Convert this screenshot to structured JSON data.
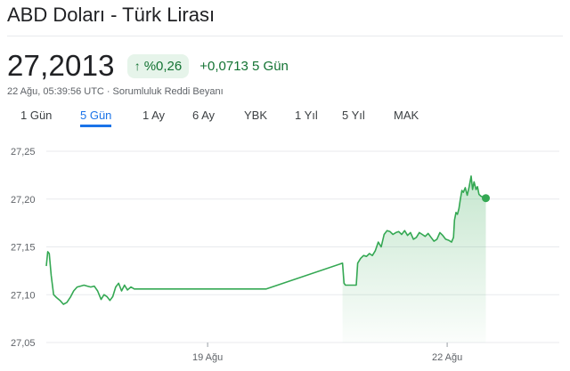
{
  "header": {
    "title": "ABD Doları - Türk Lirası",
    "price": "27,2013",
    "badge": {
      "arrow_icon": "arrow-up-icon",
      "arrow_glyph": "↑",
      "text": "%0,26"
    },
    "change": "+0,0713 5 Gün",
    "timestamp": "22 Ağu, 05:39:56 UTC",
    "separator": "·",
    "disclaimer": "Sorumluluk Reddi Beyanı"
  },
  "tabs": [
    {
      "label": "1 Gün",
      "active": false
    },
    {
      "label": "5 Gün",
      "active": true
    },
    {
      "label": "1 Ay",
      "active": false
    },
    {
      "label": "6 Ay",
      "active": false
    },
    {
      "label": "YBK",
      "active": false
    },
    {
      "label": "1 Yıl",
      "active": false
    },
    {
      "label": "5 Yıl",
      "active": false
    },
    {
      "label": "MAK",
      "active": false
    }
  ],
  "colors": {
    "line": "#34a853",
    "up": "#137333",
    "accent": "#1a73e8",
    "grid": "#e8eaed"
  },
  "chart_data": {
    "type": "line",
    "y_ticks": [
      "27,25",
      "27,20",
      "27,15",
      "27,10",
      "27,05"
    ],
    "x_ticks": [
      "19 Ağu",
      "22 Ağu"
    ],
    "ylim": [
      27.05,
      27.25
    ],
    "grid": true,
    "series": [
      {
        "values": [
          [
            0.0,
            27.13
          ],
          [
            0.3,
            27.145
          ],
          [
            0.6,
            27.143
          ],
          [
            1.0,
            27.12
          ],
          [
            1.5,
            27.1
          ],
          [
            2.1,
            27.097
          ],
          [
            2.8,
            27.094
          ],
          [
            3.5,
            27.09
          ],
          [
            4.2,
            27.092
          ],
          [
            5.0,
            27.098
          ],
          [
            5.6,
            27.104
          ],
          [
            6.3,
            27.108
          ],
          [
            7.0,
            27.109
          ],
          [
            7.7,
            27.11
          ],
          [
            8.4,
            27.109
          ],
          [
            9.1,
            27.108
          ],
          [
            9.8,
            27.109
          ],
          [
            10.5,
            27.104
          ],
          [
            11.2,
            27.095
          ],
          [
            11.8,
            27.1
          ],
          [
            12.4,
            27.098
          ],
          [
            13.0,
            27.094
          ],
          [
            13.6,
            27.098
          ],
          [
            14.2,
            27.108
          ],
          [
            14.8,
            27.112
          ],
          [
            15.4,
            27.104
          ],
          [
            16.0,
            27.11
          ],
          [
            16.6,
            27.105
          ],
          [
            17.3,
            27.108
          ],
          [
            18.0,
            27.106
          ],
          [
            18.8,
            27.106
          ],
          [
            22.0,
            27.106
          ],
          [
            35.0,
            27.106
          ],
          [
            45.0,
            27.106
          ],
          [
            60.6,
            27.133
          ],
          [
            60.9,
            27.112
          ],
          [
            61.2,
            27.11
          ],
          [
            63.4,
            27.11
          ],
          [
            63.7,
            27.133
          ],
          [
            64.3,
            27.138
          ],
          [
            64.9,
            27.141
          ],
          [
            65.5,
            27.14
          ],
          [
            66.1,
            27.143
          ],
          [
            66.7,
            27.141
          ],
          [
            67.3,
            27.146
          ],
          [
            67.9,
            27.155
          ],
          [
            68.5,
            27.15
          ],
          [
            69.1,
            27.163
          ],
          [
            69.7,
            27.167
          ],
          [
            70.3,
            27.166
          ],
          [
            70.9,
            27.163
          ],
          [
            71.5,
            27.165
          ],
          [
            72.1,
            27.166
          ],
          [
            72.7,
            27.163
          ],
          [
            73.3,
            27.167
          ],
          [
            73.9,
            27.162
          ],
          [
            74.5,
            27.165
          ],
          [
            75.1,
            27.158
          ],
          [
            75.7,
            27.16
          ],
          [
            76.3,
            27.165
          ],
          [
            76.9,
            27.163
          ],
          [
            77.5,
            27.161
          ],
          [
            78.1,
            27.164
          ],
          [
            78.7,
            27.16
          ],
          [
            79.3,
            27.156
          ],
          [
            79.9,
            27.158
          ],
          [
            80.5,
            27.165
          ],
          [
            81.1,
            27.162
          ],
          [
            81.7,
            27.158
          ],
          [
            82.3,
            27.157
          ],
          [
            82.9,
            27.155
          ],
          [
            83.3,
            27.16
          ],
          [
            83.5,
            27.178
          ],
          [
            83.8,
            27.186
          ],
          [
            84.1,
            27.184
          ],
          [
            84.4,
            27.19
          ],
          [
            84.7,
            27.2
          ],
          [
            85.0,
            27.209
          ],
          [
            85.3,
            27.207
          ],
          [
            85.7,
            27.212
          ],
          [
            86.1,
            27.204
          ],
          [
            86.5,
            27.213
          ],
          [
            86.9,
            27.224
          ],
          [
            87.2,
            27.21
          ],
          [
            87.5,
            27.218
          ],
          [
            87.9,
            27.21
          ],
          [
            88.2,
            27.213
          ],
          [
            88.5,
            27.205
          ],
          [
            88.9,
            27.203
          ],
          [
            89.4,
            27.202
          ],
          [
            89.9,
            27.201
          ]
        ]
      }
    ]
  }
}
